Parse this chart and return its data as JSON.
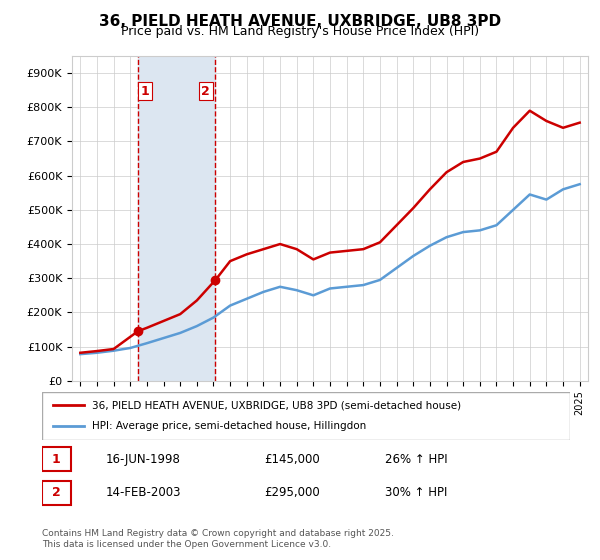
{
  "title": "36, PIELD HEATH AVENUE, UXBRIDGE, UB8 3PD",
  "subtitle": "Price paid vs. HM Land Registry's House Price Index (HPI)",
  "footnote": "Contains HM Land Registry data © Crown copyright and database right 2025.\nThis data is licensed under the Open Government Licence v3.0.",
  "legend_line1": "36, PIELD HEATH AVENUE, UXBRIDGE, UB8 3PD (semi-detached house)",
  "legend_line2": "HPI: Average price, semi-detached house, Hillingdon",
  "transactions": [
    {
      "num": 1,
      "date": "16-JUN-1998",
      "price": "£145,000",
      "hpi": "26% ↑ HPI"
    },
    {
      "num": 2,
      "date": "14-FEB-2003",
      "price": "£295,000",
      "hpi": "30% ↑ HPI"
    }
  ],
  "shade_xmin": 1998.46,
  "shade_xmax": 2003.12,
  "vline1_x": 1998.46,
  "vline2_x": 2003.12,
  "point1_x": 1998.46,
  "point1_y": 145000,
  "point2_x": 2003.12,
  "point2_y": 295000,
  "red_color": "#cc0000",
  "blue_color": "#5b9bd5",
  "shade_color": "#dce6f1",
  "ylim": [
    0,
    950000
  ],
  "xlim": [
    1994.5,
    2025.5
  ],
  "hpi_years": [
    1995,
    1996,
    1997,
    1998,
    1999,
    2000,
    2001,
    2002,
    2003,
    2004,
    2005,
    2006,
    2007,
    2008,
    2009,
    2010,
    2011,
    2012,
    2013,
    2014,
    2015,
    2016,
    2017,
    2018,
    2019,
    2020,
    2021,
    2022,
    2023,
    2024,
    2025
  ],
  "hpi_values": [
    78000,
    82000,
    88000,
    96000,
    110000,
    125000,
    140000,
    160000,
    185000,
    220000,
    240000,
    260000,
    275000,
    265000,
    250000,
    270000,
    275000,
    280000,
    295000,
    330000,
    365000,
    395000,
    420000,
    435000,
    440000,
    455000,
    500000,
    545000,
    530000,
    560000,
    575000
  ],
  "price_years": [
    1995,
    1996,
    1997,
    1998.46,
    1999,
    2000,
    2001,
    2002,
    2003.12,
    2004,
    2005,
    2006,
    2007,
    2008,
    2009,
    2010,
    2011,
    2012,
    2013,
    2014,
    2015,
    2016,
    2017,
    2018,
    2019,
    2020,
    2021,
    2022,
    2023,
    2024,
    2025
  ],
  "price_values": [
    82000,
    87000,
    93000,
    145000,
    155000,
    175000,
    195000,
    235000,
    295000,
    350000,
    370000,
    385000,
    400000,
    385000,
    355000,
    375000,
    380000,
    385000,
    405000,
    455000,
    505000,
    560000,
    610000,
    640000,
    650000,
    670000,
    740000,
    790000,
    760000,
    740000,
    755000
  ]
}
